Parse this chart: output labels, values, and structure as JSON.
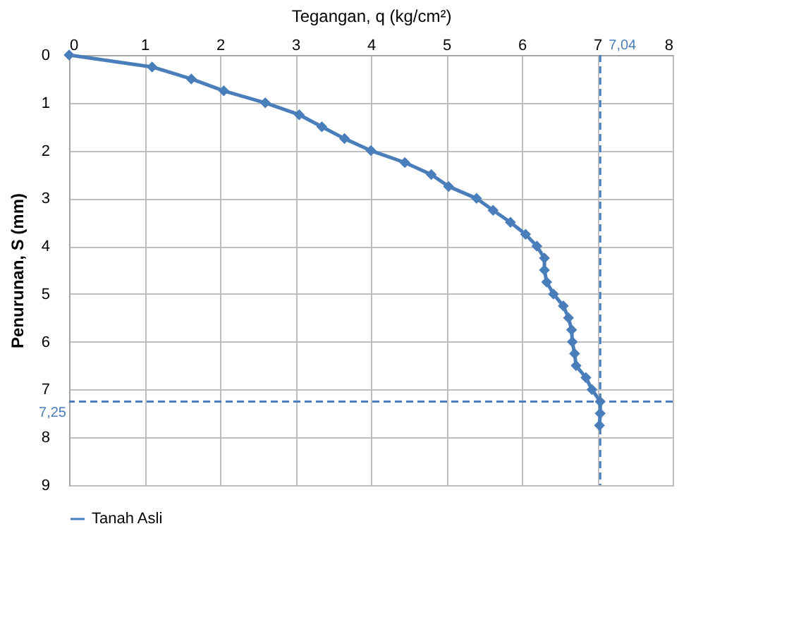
{
  "chart_data": {
    "type": "line",
    "xlabel": "Tegangan, q (kg/cm²)",
    "ylabel": "Penurunan, S (mm)",
    "x": [
      0,
      1.1,
      1.62,
      2.05,
      2.6,
      3.05,
      3.35,
      3.65,
      4.0,
      4.45,
      4.8,
      5.03,
      5.4,
      5.62,
      5.85,
      6.05,
      6.2,
      6.3,
      6.3,
      6.33,
      6.42,
      6.55,
      6.62,
      6.66,
      6.67,
      6.7,
      6.72,
      6.85,
      6.93,
      7.04,
      7.04,
      7.03
    ],
    "series": [
      {
        "name": "Tanah Asli",
        "color": "#4a7ebb",
        "values": [
          0,
          0.25,
          0.5,
          0.75,
          1.0,
          1.25,
          1.5,
          1.75,
          2.0,
          2.25,
          2.5,
          2.75,
          3.0,
          3.25,
          3.5,
          3.75,
          4.0,
          4.25,
          4.5,
          4.75,
          5.0,
          5.25,
          5.5,
          5.75,
          6.0,
          6.25,
          6.5,
          6.75,
          7.0,
          7.25,
          7.5,
          7.75
        ]
      }
    ],
    "xlim": [
      0,
      8
    ],
    "xticks": [
      0,
      1,
      2,
      3,
      4,
      5,
      6,
      7,
      8
    ],
    "ylim": [
      9,
      0
    ],
    "yticks": [
      0,
      1,
      2,
      3,
      4,
      5,
      6,
      7,
      8,
      9
    ],
    "ref_lines": [
      {
        "axis": "x",
        "value": 7.04,
        "label": "7,04",
        "color": "#4a7ebb",
        "line_style": "dashed"
      },
      {
        "axis": "y",
        "value": 7.25,
        "label": "7,25",
        "color": "#4a7ebb",
        "line_style": "dashed"
      }
    ],
    "grid": true,
    "legend": "bottom",
    "marker": "diamond",
    "line_style": "solid"
  }
}
